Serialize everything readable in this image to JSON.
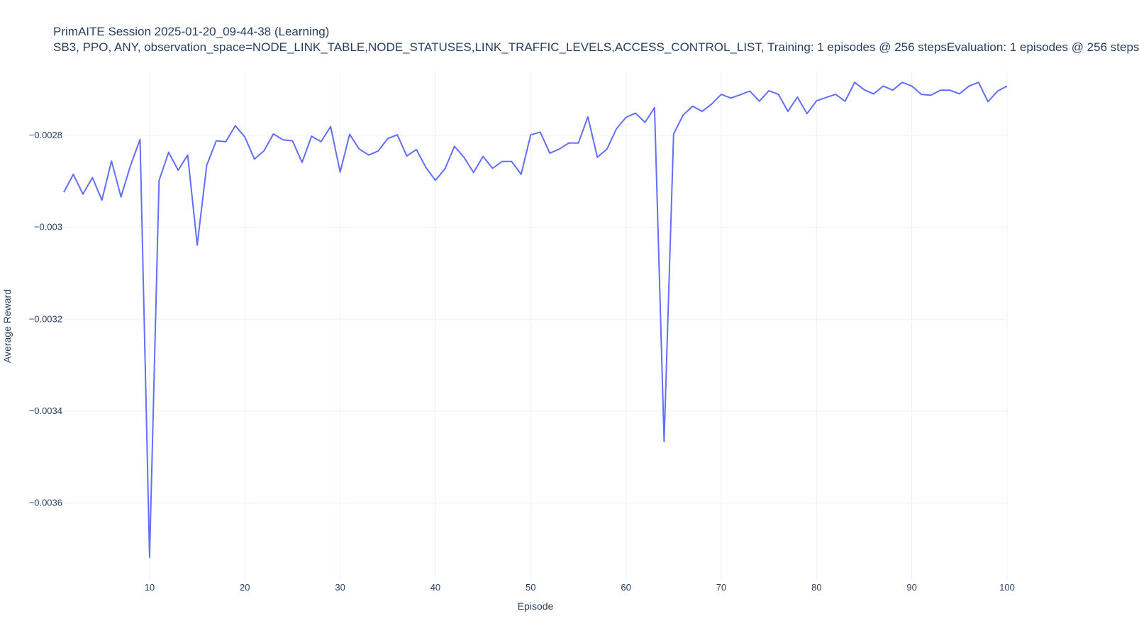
{
  "chart_data": {
    "type": "line",
    "title": "PrimAITE Session 2025-01-20_09-44-38 (Learning)",
    "subtitle": "SB3, PPO, ANY, observation_space=NODE_LINK_TABLE,NODE_STATUSES,LINK_TRAFFIC_LEVELS,ACCESS_CONTROL_LIST, Training: 1 episodes @ 256 stepsEvaluation: 1 episodes @ 256 steps",
    "xlabel": "Episode",
    "ylabel": "Average Reward",
    "xlim": [
      1,
      100
    ],
    "ylim": [
      -0.00377,
      -0.00266
    ],
    "xticks": [
      10,
      20,
      30,
      40,
      50,
      60,
      70,
      80,
      90,
      100
    ],
    "xtick_labels": [
      "10",
      "20",
      "30",
      "40",
      "50",
      "60",
      "70",
      "80",
      "90",
      "100"
    ],
    "yticks": [
      -0.0028,
      -0.003,
      -0.0032,
      -0.0034,
      -0.0036
    ],
    "ytick_labels": [
      "−0.0028",
      "−0.003",
      "−0.0032",
      "−0.0034",
      "−0.0036"
    ],
    "grid": true,
    "line_color": "#636efa",
    "series": [
      {
        "x": [
          1,
          2,
          3,
          4,
          5,
          6,
          7,
          8,
          9,
          10,
          11,
          12,
          13,
          14,
          15,
          16,
          17,
          18,
          19,
          20,
          21,
          22,
          23,
          24,
          25,
          26,
          27,
          28,
          29,
          30,
          31,
          32,
          33,
          34,
          35,
          36,
          37,
          38,
          39,
          40,
          41,
          42,
          43,
          44,
          45,
          46,
          47,
          48,
          49,
          50,
          51,
          52,
          53,
          54,
          55,
          56,
          57,
          58,
          59,
          60,
          61,
          62,
          63,
          64,
          65,
          66,
          67,
          68,
          69,
          70,
          71,
          72,
          73,
          74,
          75,
          76,
          77,
          78,
          79,
          80,
          81,
          82,
          83,
          84,
          85,
          86,
          87,
          88,
          89,
          90,
          91,
          92,
          93,
          94,
          95,
          96,
          97,
          98,
          99,
          100
        ],
        "values": [
          -0.002924,
          -0.002885,
          -0.002928,
          -0.002892,
          -0.002941,
          -0.002856,
          -0.002934,
          -0.002866,
          -0.002809,
          -0.003718,
          -0.002898,
          -0.002837,
          -0.002876,
          -0.002843,
          -0.003039,
          -0.002865,
          -0.002812,
          -0.002814,
          -0.002779,
          -0.002804,
          -0.002852,
          -0.002834,
          -0.002797,
          -0.00281,
          -0.002812,
          -0.002859,
          -0.002802,
          -0.002814,
          -0.002781,
          -0.00288,
          -0.002798,
          -0.00283,
          -0.002843,
          -0.002834,
          -0.002807,
          -0.002799,
          -0.002845,
          -0.002831,
          -0.00287,
          -0.002898,
          -0.002873,
          -0.002824,
          -0.002848,
          -0.002881,
          -0.002846,
          -0.002872,
          -0.002857,
          -0.002857,
          -0.002885,
          -0.002799,
          -0.002793,
          -0.002839,
          -0.00283,
          -0.002817,
          -0.002817,
          -0.00276,
          -0.002848,
          -0.00283,
          -0.002786,
          -0.002761,
          -0.002752,
          -0.002772,
          -0.00274,
          -0.003466,
          -0.002797,
          -0.002756,
          -0.002737,
          -0.002748,
          -0.002732,
          -0.002711,
          -0.002719,
          -0.002712,
          -0.002704,
          -0.002726,
          -0.002703,
          -0.002711,
          -0.002748,
          -0.002717,
          -0.002753,
          -0.002725,
          -0.002718,
          -0.002711,
          -0.002726,
          -0.002685,
          -0.002701,
          -0.00271,
          -0.002693,
          -0.002702,
          -0.002685,
          -0.002693,
          -0.002711,
          -0.002713,
          -0.002702,
          -0.002702,
          -0.00271,
          -0.002693,
          -0.002685,
          -0.002727,
          -0.002704,
          -0.002693
        ]
      }
    ]
  }
}
